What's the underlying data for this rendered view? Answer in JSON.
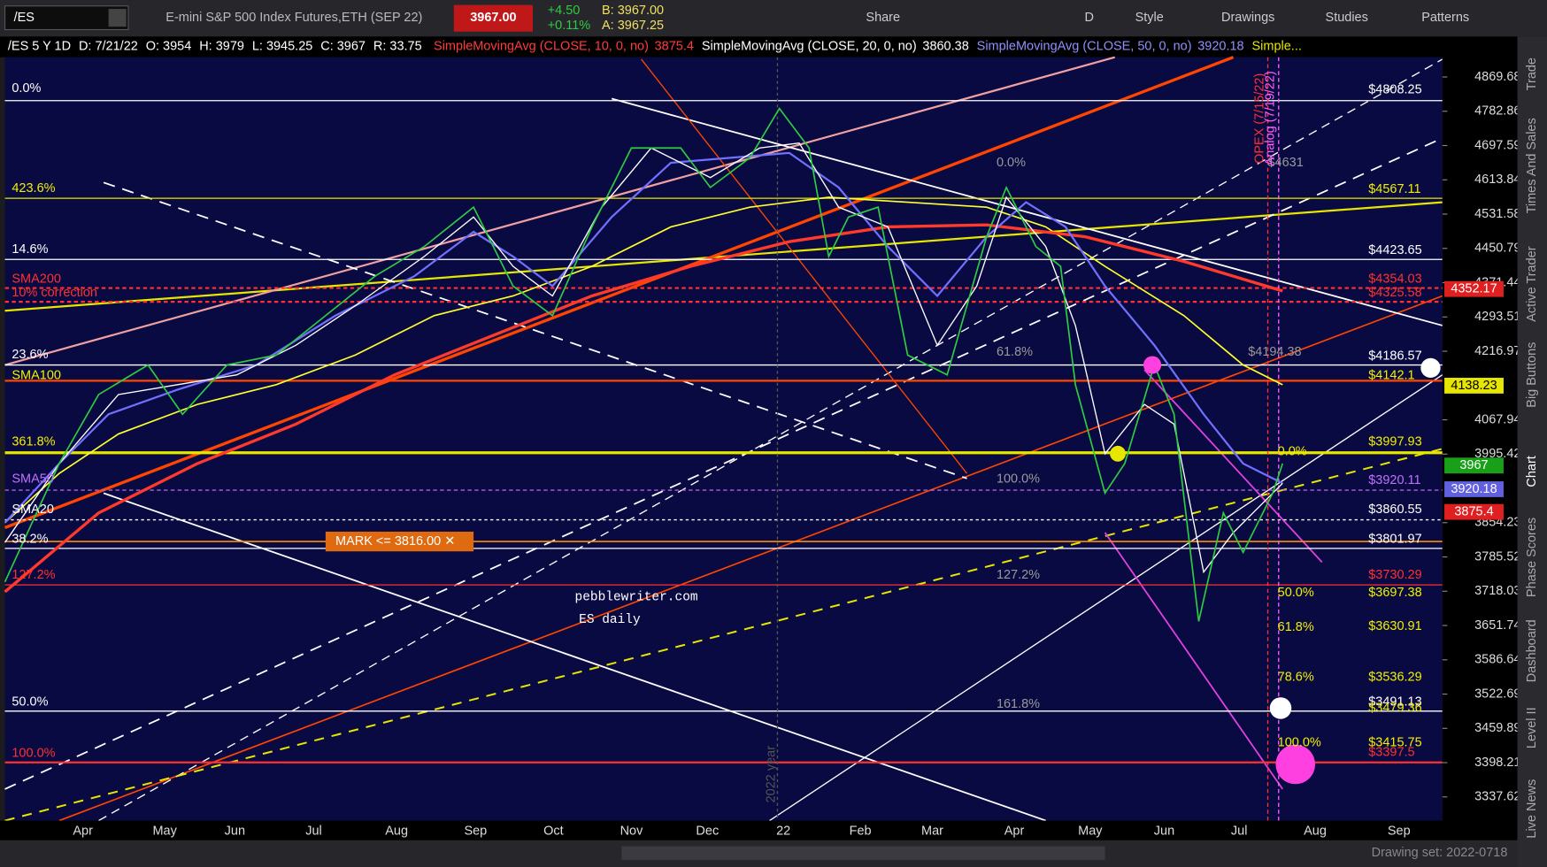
{
  "toolbar": {
    "symbol": "/ES",
    "title": "E-mini S&P 500 Index Futures,ETH (SEP 22)",
    "last": "3967.00",
    "change": "+4.50",
    "change_pct": "+0.11%",
    "bid": "B: 3967.00",
    "ask": "A: 3967.25",
    "buttons": [
      "Share",
      "D",
      "Style",
      "Drawings",
      "Studies",
      "Patterns"
    ]
  },
  "info_bar": {
    "symbol": "/ES 5 Y 1D",
    "date": "D: 7/21/22",
    "open": "O: 3954",
    "high": "H: 3979",
    "low": "L: 3945.25",
    "close": "C: 3967",
    "range": "R: 33.75",
    "studies": [
      {
        "text": "SimpleMovingAvg (CLOSE, 10, 0, no)",
        "value": "3875.4",
        "color": "#ff3b3b"
      },
      {
        "text": "SimpleMovingAvg (CLOSE, 20, 0, no)",
        "value": "3860.38",
        "color": "#ffffff"
      },
      {
        "text": "SimpleMovingAvg (CLOSE, 50, 0, no)",
        "value": "3920.18",
        "color": "#8f8fff"
      },
      {
        "text": "Simple...",
        "value": null,
        "color": "#e6e600"
      }
    ]
  },
  "price_axis": {
    "scale": "log",
    "ticks": [
      4869.68,
      4782.86,
      4697.59,
      4613.84,
      4531.58,
      4450.79,
      4371.44,
      4293.51,
      4216.97,
      4067.94,
      3995.42,
      3854.23,
      3785.52,
      3718.03,
      3651.74,
      3586.64,
      3522.69,
      3459.89,
      3398.21,
      3337.62
    ]
  },
  "price_tags": [
    {
      "text": "4352.17",
      "color": "#e02020"
    },
    {
      "text": "4138.23",
      "color": "#e6e600"
    },
    {
      "text": "3967",
      "color": "#18a018"
    },
    {
      "text": "3920.18",
      "color": "#6060e0"
    },
    {
      "text": "3875.4",
      "color": "#e02020"
    }
  ],
  "time_axis": [
    "Apr",
    "May",
    "Jun",
    "Jul",
    "Aug",
    "Sep",
    "Oct",
    "Nov",
    "Dec",
    "22",
    "Feb",
    "Mar",
    "Apr",
    "May",
    "Jun",
    "Jul",
    "Aug",
    "Sep"
  ],
  "annotations": [
    "0.0%",
    "423.6%",
    "14.6%",
    "SMA200",
    "10% correction",
    "23.6%",
    "SMA100",
    "361.8%",
    "SMA50",
    "SMA20",
    "38.2%",
    "127.2%",
    "50.0%",
    "100.0%",
    "0.0%",
    "61.8%",
    "100.0%",
    "127.2%",
    "161.8%",
    "$4631",
    "$4194.38",
    "$4808.25",
    "$4567.11",
    "$4423.65",
    "$4354.03",
    "$4325.58",
    "$4186.57",
    "$4142.1",
    "$3997.93",
    "$3920.11",
    "$3860.55",
    "$3801.97",
    "$3730.29",
    "$3697.38",
    "$3630.91",
    "$3536.29",
    "$3491.13",
    "$3479.36",
    "$3415.75",
    "$3397.5",
    "0.0%",
    "50.0%",
    "61.8%",
    "78.6%",
    "100.0%"
  ],
  "mark_label": "MARK <= 3816.00 ✕",
  "watermark": [
    "pebblewriter.com",
    "ES daily"
  ],
  "vertical_labels": [
    "OPEX (7/15/22)",
    "Analog (7/19/22)",
    "2022 year"
  ],
  "side_tabs": [
    "Trade",
    "Times And Sales",
    "Active Trader",
    "Big Buttons",
    "Chart",
    "Phase Scores",
    "Dashboard",
    "Level II",
    "Live News"
  ],
  "footer": "Drawing set: 2022-0718"
}
